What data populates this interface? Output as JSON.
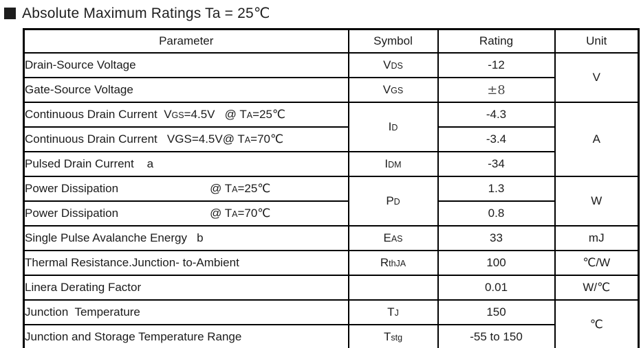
{
  "colors": {
    "border": "#000000",
    "text": "#1b1b1b",
    "bullet": "#1d1d1d"
  },
  "title": {
    "bullet_icon": "black-square",
    "text": "Absolute Maximum Ratings Ta = 25℃"
  },
  "table": {
    "headers": [
      "Parameter",
      "Symbol",
      "Rating",
      "Unit"
    ],
    "rows": [
      {
        "parameter": [
          {
            "t": "Drain-Source Voltage"
          }
        ],
        "symbol": {
          "rowspan": 1,
          "parts": [
            {
              "t": "V"
            },
            {
              "t": "DS",
              "small": true
            }
          ]
        },
        "rating": {
          "text": "-12"
        },
        "unit": {
          "rowspan": 2,
          "text": "V"
        }
      },
      {
        "parameter": [
          {
            "t": "Gate-Source Voltage"
          }
        ],
        "symbol": {
          "rowspan": 1,
          "parts": [
            {
              "t": "V"
            },
            {
              "t": "GS",
              "small": true
            }
          ]
        },
        "rating": {
          "text": "±8",
          "serif": true
        }
      },
      {
        "parameter": [
          {
            "t": "Continuous Drain Current  V"
          },
          {
            "t": "GS",
            "small": true
          },
          {
            "t": "=4.5V   @ T"
          },
          {
            "t": "A",
            "small": true
          },
          {
            "t": "=25℃"
          }
        ],
        "symbol": {
          "rowspan": 2,
          "parts": [
            {
              "t": "I"
            },
            {
              "t": "D",
              "small": true
            }
          ]
        },
        "rating": {
          "text": "-4.3"
        },
        "unit": {
          "rowspan": 3,
          "text": "A"
        }
      },
      {
        "parameter": [
          {
            "t": "Continuous Drain Current   VGS=4.5V@ T"
          },
          {
            "t": "A",
            "small": true
          },
          {
            "t": "=70℃"
          }
        ],
        "rating": {
          "text": "-3.4"
        }
      },
      {
        "parameter": [
          {
            "t": "Pulsed Drain Current    a"
          }
        ],
        "symbol": {
          "rowspan": 1,
          "parts": [
            {
              "t": "I"
            },
            {
              "t": "DM",
              "small": true
            }
          ]
        },
        "rating": {
          "text": "-34"
        }
      },
      {
        "parameter": [
          {
            "t": "Power Dissipation"
          },
          {
            "gap": 133
          },
          {
            "t": "@ T"
          },
          {
            "t": "A",
            "small": true
          },
          {
            "t": "=25℃"
          }
        ],
        "symbol": {
          "rowspan": 2,
          "parts": [
            {
              "t": "P"
            },
            {
              "t": "D",
              "small": true
            }
          ]
        },
        "rating": {
          "text": "1.3"
        },
        "unit": {
          "rowspan": 2,
          "text": "W"
        }
      },
      {
        "parameter": [
          {
            "t": "Power Dissipation"
          },
          {
            "gap": 133
          },
          {
            "t": "@ T"
          },
          {
            "t": "A",
            "small": true
          },
          {
            "t": "=70℃"
          }
        ],
        "rating": {
          "text": "0.8"
        }
      },
      {
        "parameter": [
          {
            "t": "Single Pulse Avalanche Energy   b"
          }
        ],
        "symbol": {
          "rowspan": 1,
          "parts": [
            {
              "t": "E"
            },
            {
              "t": "AS",
              "small": true
            }
          ]
        },
        "rating": {
          "text": "33"
        },
        "unit": {
          "rowspan": 1,
          "text": "mJ"
        }
      },
      {
        "parameter": [
          {
            "t": "Thermal Resistance.Junction- to-Ambient"
          }
        ],
        "symbol": {
          "rowspan": 1,
          "parts": [
            {
              "t": "R"
            },
            {
              "t": "thJA",
              "small": true
            }
          ]
        },
        "rating": {
          "text": "100"
        },
        "unit": {
          "rowspan": 1,
          "text": "℃/W"
        }
      },
      {
        "parameter": [
          {
            "t": "Linera Derating Factor"
          }
        ],
        "symbol": {
          "rowspan": 1,
          "parts": []
        },
        "rating": {
          "text": "0.01"
        },
        "unit": {
          "rowspan": 1,
          "text": "W/℃"
        }
      },
      {
        "parameter": [
          {
            "t": "Junction  Temperature"
          }
        ],
        "symbol": {
          "rowspan": 1,
          "parts": [
            {
              "t": "T"
            },
            {
              "t": "J",
              "small": true
            }
          ]
        },
        "rating": {
          "text": "150"
        },
        "unit": {
          "rowspan": 2,
          "text": "℃"
        }
      },
      {
        "parameter": [
          {
            "t": "Junction and Storage Temperature Range"
          }
        ],
        "symbol": {
          "rowspan": 1,
          "parts": [
            {
              "t": "T"
            },
            {
              "t": "stg",
              "small": true
            }
          ]
        },
        "rating": {
          "text": "-55 to 150"
        }
      }
    ]
  }
}
